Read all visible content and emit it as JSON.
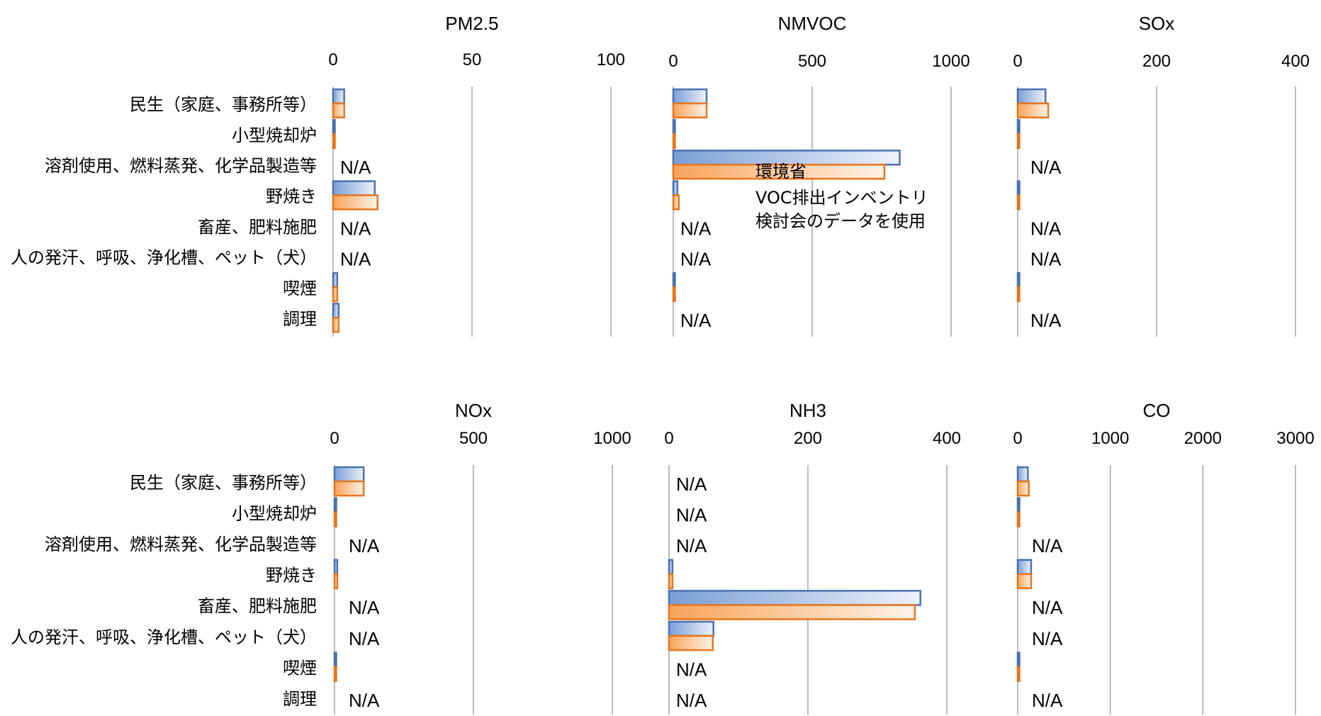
{
  "categories": [
    "民生（家庭、事務所等）",
    "小型焼却炉",
    "溶剤使用、燃料蒸発、化学品製造等",
    "野焼き",
    "畜産、肥料施肥",
    "人の発汗、呼吸、浄化槽、ペット（犬）",
    "喫煙",
    "調理"
  ],
  "colors": {
    "series1_edge": "#4a72b0",
    "series1_light": "#e6ecf7",
    "series1_dark": "#7a9fd6",
    "series2_edge": "#e8761c",
    "series2_light": "#fde9d6",
    "series2_dark": "#f7a45a",
    "grid": "#a6a6a6"
  },
  "na_label": "N/A",
  "annotation": [
    "環境省",
    "VOC排出インベントリ",
    "検討会のデータを使用"
  ],
  "chart_data": [
    {
      "type": "bar",
      "title": "PM2.5",
      "xlim": [
        0,
        100
      ],
      "ticks": [
        0,
        50,
        100
      ],
      "series": [
        {
          "values": [
            4,
            0.5,
            null,
            15,
            null,
            null,
            1.5,
            2
          ]
        },
        {
          "values": [
            4,
            0.5,
            null,
            16,
            null,
            null,
            1.5,
            2
          ]
        }
      ]
    },
    {
      "type": "bar",
      "title": "NMVOC",
      "xlim": [
        0,
        1000
      ],
      "ticks": [
        0,
        500,
        1000
      ],
      "series": [
        {
          "values": [
            120,
            5,
            815,
            15,
            null,
            null,
            5,
            null
          ]
        },
        {
          "values": [
            120,
            5,
            760,
            20,
            null,
            null,
            5,
            null
          ]
        }
      ]
    },
    {
      "type": "bar",
      "title": "SOx",
      "xlim": [
        0,
        400
      ],
      "ticks": [
        0,
        200,
        400
      ],
      "series": [
        {
          "values": [
            40,
            1,
            null,
            1,
            null,
            null,
            1,
            null
          ]
        },
        {
          "values": [
            44,
            1,
            null,
            1,
            null,
            null,
            1,
            null
          ]
        }
      ]
    },
    {
      "type": "bar",
      "title": "NOx",
      "xlim": [
        0,
        1000
      ],
      "ticks": [
        0,
        500,
        1000
      ],
      "series": [
        {
          "values": [
            105,
            5,
            null,
            10,
            null,
            null,
            5,
            null
          ]
        },
        {
          "values": [
            105,
            5,
            null,
            10,
            null,
            null,
            5,
            null
          ]
        }
      ]
    },
    {
      "type": "bar",
      "title": "NH3",
      "xlim": [
        0,
        400
      ],
      "ticks": [
        0,
        200,
        400
      ],
      "series": [
        {
          "values": [
            null,
            null,
            null,
            5,
            362,
            64,
            null,
            null
          ]
        },
        {
          "values": [
            null,
            null,
            null,
            5,
            354,
            63,
            null,
            null
          ]
        }
      ]
    },
    {
      "type": "bar",
      "title": "CO",
      "xlim": [
        0,
        3000
      ],
      "ticks": [
        0,
        1000,
        2000,
        3000
      ],
      "series": [
        {
          "values": [
            110,
            5,
            null,
            145,
            null,
            null,
            5,
            null
          ]
        },
        {
          "values": [
            120,
            5,
            null,
            145,
            null,
            null,
            5,
            null
          ]
        }
      ]
    }
  ]
}
